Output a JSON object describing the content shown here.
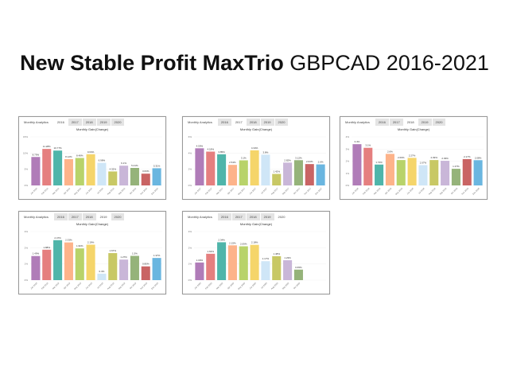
{
  "title_bold": "New Stable Profit MaxTrio",
  "title_rest": "GBPCAD 2016-2021",
  "tab_label": "Monthly Analytics",
  "tabs": [
    "2016",
    "2017",
    "2018",
    "2019",
    "2020"
  ],
  "colors": [
    "#b07cb8",
    "#e57f7f",
    "#4fb5aa",
    "#fdb38a",
    "#b8d36a",
    "#f5d56a",
    "#cfe6f7",
    "#c8c865",
    "#c9b6d8",
    "#95b37a",
    "#c96464",
    "#6ab6e0"
  ],
  "chart_data": [
    {
      "type": "bar",
      "title": "Monthly Gain(Change)",
      "year": "2016",
      "ylim": [
        0,
        15
      ],
      "yticks": [
        "0%",
        "5%",
        "10%",
        "15%"
      ],
      "categories": [
        "Jan 2016",
        "Feb 2016",
        "Mar 2016",
        "Apr 2016",
        "May 2016",
        "Jun 2016",
        "Jul 2016",
        "Aug 2016",
        "Sep 2016",
        "Oct 2016",
        "Nov 2016",
        "Dec 2016"
      ],
      "values": [
        8.79,
        11.28,
        10.77,
        8.12,
        8.48,
        9.64,
        6.98,
        4.32,
        6.1,
        5.41,
        3.63,
        5.31
      ]
    },
    {
      "type": "bar",
      "title": "Monthly Gain(Change)",
      "year": "2017",
      "ylim": [
        0,
        6
      ],
      "yticks": [
        "0%",
        "2%",
        "4%",
        "6%"
      ],
      "categories": [
        "Jan 2017",
        "Feb 2017",
        "Mar 2017",
        "Apr 2017",
        "May 2017",
        "Jun 2017",
        "Jul 2017",
        "Aug 2017",
        "Sep 2017",
        "Oct 2017",
        "Nov 2017",
        "Dec 2017"
      ],
      "values": [
        4.59,
        4.18,
        3.85,
        2.54,
        3.1,
        4.34,
        3.8,
        1.42,
        2.82,
        3.12,
        2.64,
        2.6
      ]
    },
    {
      "type": "bar",
      "title": "Monthly Gain(Change)",
      "year": "2018",
      "ylim": [
        0,
        4
      ],
      "yticks": [
        "0%",
        "1%",
        "2%",
        "3%",
        "4%"
      ],
      "categories": [
        "Jan 2018",
        "Feb 2018",
        "Mar 2018",
        "Apr 2018",
        "May 2018",
        "Jun 2018",
        "Jul 2018",
        "Aug 2018",
        "Sep 2018",
        "Oct 2018",
        "Nov 2018",
        "Dec 2018"
      ],
      "values": [
        3.4,
        3.1,
        1.72,
        2.6,
        2.09,
        2.27,
        1.67,
        2.09,
        2.03,
        1.37,
        2.17,
        2.08
      ]
    },
    {
      "type": "bar",
      "title": "Monthly Gain(Change)",
      "year": "2019",
      "ylim": [
        0,
        3
      ],
      "yticks": [
        "0%",
        "1%",
        "2%",
        "3%"
      ],
      "categories": [
        "Jan 2019",
        "Feb 2019",
        "Mar 2019",
        "Apr 2019",
        "May 2019",
        "Jun 2019",
        "Jul 2019",
        "Aug 2019",
        "Sep 2019",
        "Oct 2019",
        "Nov 2019",
        "Dec 2019"
      ],
      "values": [
        1.49,
        1.88,
        2.47,
        2.33,
        1.96,
        2.19,
        0.4,
        1.67,
        1.27,
        1.5,
        0.85,
        1.37
      ]
    },
    {
      "type": "bar",
      "title": "Monthly Gain(Change)",
      "year": "2020",
      "ylim": [
        0,
        3
      ],
      "yticks": [
        "0%",
        "1%",
        "2%",
        "3%"
      ],
      "categories": [
        "Jan 2020",
        "Feb 2020",
        "Mar 2020",
        "Apr 2020",
        "May 2020",
        "Jun 2020",
        "Jul 2020",
        "Aug 2020",
        "Sep 2020",
        "Oct 2020"
      ],
      "values": [
        1.09,
        1.63,
        2.34,
        2.15,
        2.09,
        2.18,
        1.17,
        1.48,
        1.23,
        0.65
      ]
    }
  ]
}
